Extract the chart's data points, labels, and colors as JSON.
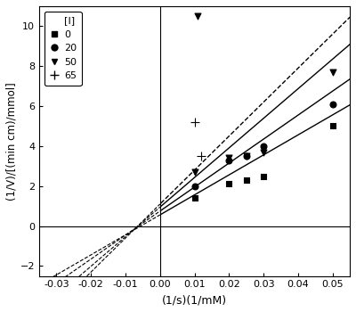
{
  "title": "",
  "xlabel": "(1/s)(1/mM)",
  "ylabel": "(1/V)/[(min cm)/mmol]",
  "xlim": [
    -0.035,
    0.055
  ],
  "ylim": [
    -2.5,
    11
  ],
  "xticks": [
    -0.03,
    -0.02,
    -0.01,
    0.0,
    0.01,
    0.02,
    0.03,
    0.04,
    0.05
  ],
  "yticks": [
    -2,
    0,
    2,
    4,
    6,
    8,
    10
  ],
  "legend_labels": [
    "[I]",
    "0",
    "20",
    "50",
    "65"
  ],
  "series": [
    {
      "label": "0",
      "marker": "s",
      "markersize": 5,
      "color": "#000000",
      "scatter_x": [
        0.01,
        0.02,
        0.025,
        0.03,
        0.05
      ],
      "scatter_y": [
        1.4,
        2.1,
        2.3,
        2.5,
        5.0
      ],
      "line_x": [
        -0.035,
        0.05
      ],
      "line_slope": 100.0,
      "line_intercept": 0.56,
      "line_style": "-"
    },
    {
      "label": "20",
      "marker": "o",
      "markersize": 5,
      "color": "#000000",
      "scatter_x": [
        0.01,
        0.02,
        0.025,
        0.03,
        0.05
      ],
      "scatter_y": [
        2.1,
        3.3,
        3.5,
        4.0,
        6.1
      ],
      "line_x": [
        -0.035,
        0.05
      ],
      "line_slope": 120.0,
      "line_intercept": 0.78,
      "line_style": "-"
    },
    {
      "label": "50",
      "marker": "v",
      "markersize": 6,
      "color": "#000000",
      "scatter_x": [
        0.01,
        0.011,
        0.02,
        0.025,
        0.03,
        0.05
      ],
      "scatter_y": [
        2.7,
        10.5,
        3.4,
        3.5,
        3.7,
        7.7
      ],
      "line_x": [
        -0.035,
        0.05
      ],
      "line_slope": 150.0,
      "line_intercept": 1.0,
      "line_style": "-"
    },
    {
      "label": "65",
      "marker": "+",
      "markersize": 7,
      "color": "#000000",
      "scatter_x": [
        0.01,
        0.012
      ],
      "scatter_y": [
        5.2,
        3.5
      ],
      "line_x": [
        -0.035,
        0.05
      ],
      "line_slope": 180.0,
      "line_intercept": 1.3,
      "line_style": "--"
    }
  ],
  "background_color": "#ffffff",
  "figsize": [
    4.0,
    3.5
  ],
  "dpi": 100
}
